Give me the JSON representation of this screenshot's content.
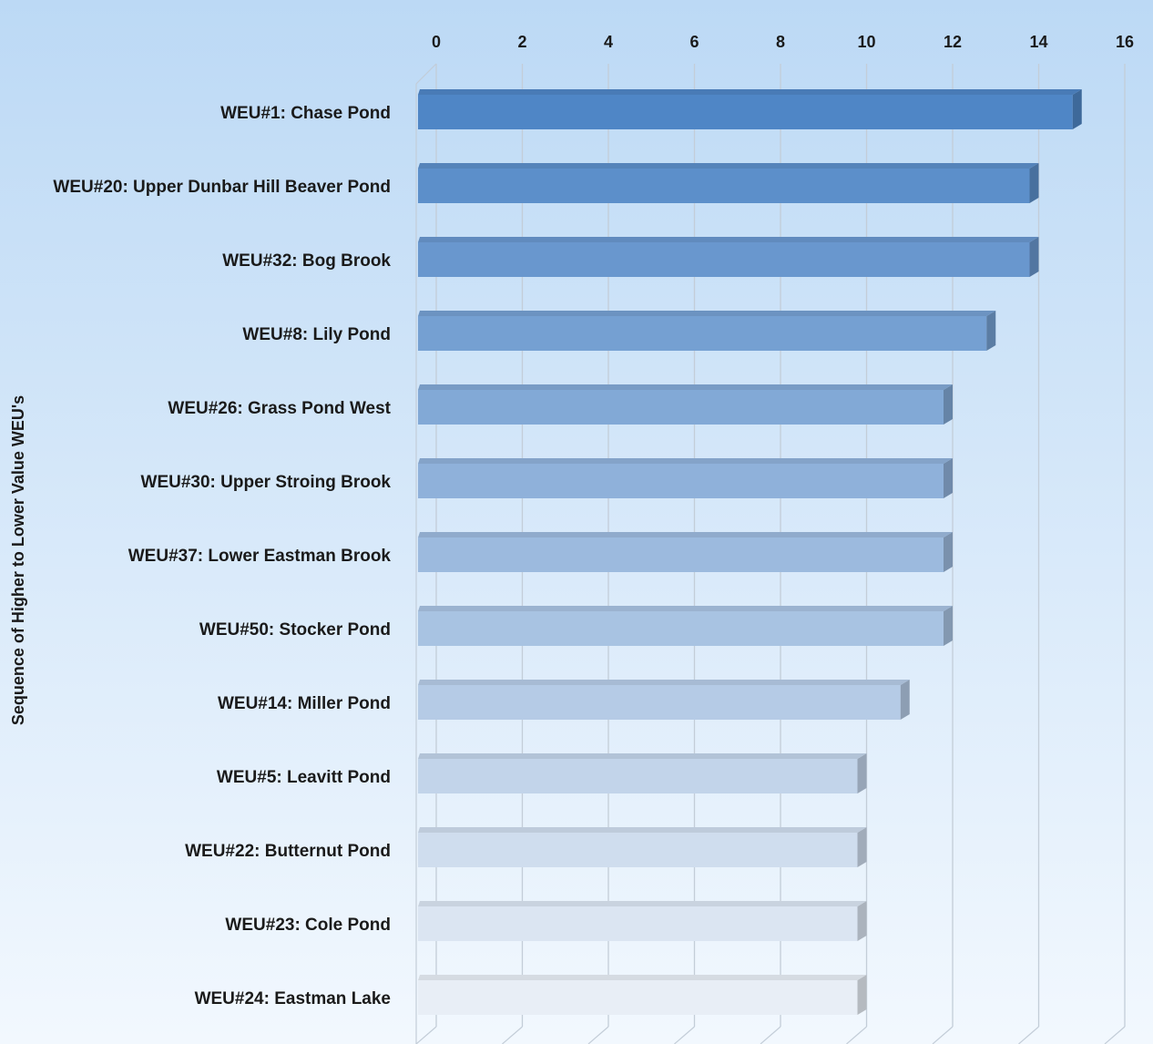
{
  "chart_data": {
    "type": "bar",
    "orientation": "horizontal",
    "ylabel": "Sequence of Higher to Lower Value WEU's",
    "xlim": [
      0,
      16
    ],
    "x_ticks": [
      "0",
      "2",
      "4",
      "6",
      "8",
      "10",
      "12",
      "14",
      "16"
    ],
    "x_axis_position": "top",
    "grid": true,
    "categories": [
      "WEU#1: Chase Pond",
      "WEU#20: Upper Dunbar Hill Beaver Pond",
      "WEU#32: Bog Brook",
      "WEU#8: Lily Pond",
      "WEU#26: Grass Pond West",
      "WEU#30: Upper Stroing Brook",
      "WEU#37: Lower Eastman Brook",
      "WEU#50: Stocker Pond",
      "WEU#14: Miller Pond",
      "WEU#5: Leavitt Pond",
      "WEU#22: Butternut Pond",
      "WEU#23: Cole Pond",
      "WEU#24: Eastman Lake"
    ],
    "values": [
      15,
      14,
      14,
      13,
      12,
      12,
      12,
      12,
      11,
      10,
      10,
      10,
      10
    ],
    "colors": {
      "background_top": "#bcd9f5",
      "background_bottom": "#f2f8fe",
      "bar_dark": "#4f86c6",
      "bar_light": "#e8eef6"
    }
  }
}
